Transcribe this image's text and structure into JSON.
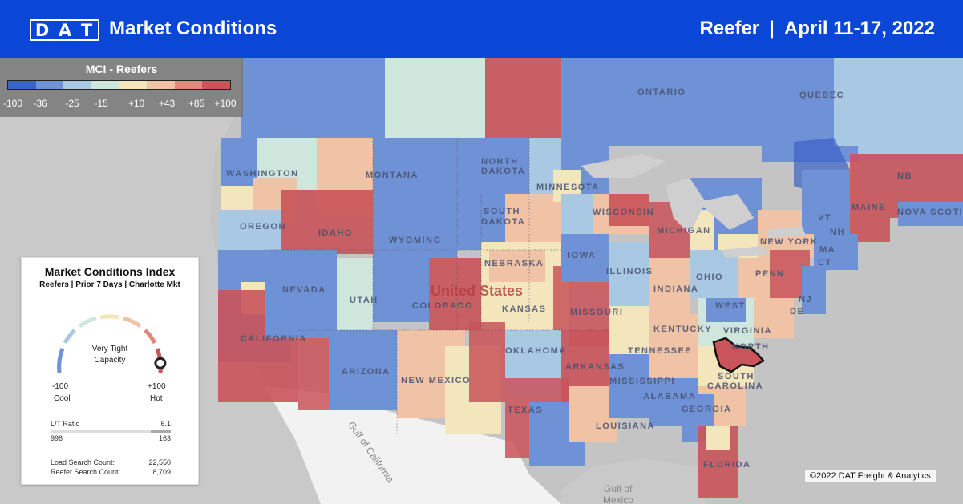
{
  "header": {
    "logo": [
      "D",
      "A",
      "T"
    ],
    "title": "Market Conditions",
    "equipment": "Reefer",
    "separator": "|",
    "date_range": "April 11-17, 2022"
  },
  "legend": {
    "title": "MCI - Reefers",
    "colors": [
      "#3b63c6",
      "#6f92d6",
      "#a9c8e4",
      "#cfe6dc",
      "#f3e6bc",
      "#f0c2a6",
      "#e0897a",
      "#c9545a"
    ],
    "ticks": [
      "-100",
      "-36",
      "-25",
      "-15",
      "+10",
      "+43",
      "+85",
      "+100"
    ]
  },
  "card": {
    "title": "Market Conditions Index",
    "subtitle": "Reefers | Prior 7 Days | Charlotte Mkt",
    "center_line1": "Very Tight",
    "center_line2": "Capacity",
    "min_value": "-100",
    "max_value": "+100",
    "min_label": "Cool",
    "max_label": "Hot",
    "gauge_level": 0.92,
    "lt_ratio_label": "L/T Ratio",
    "lt_ratio_value": "6.1",
    "loads_value": "996",
    "trucks_value": "163",
    "load_search_label": "Load Search Count:",
    "load_search_value": "22,550",
    "reefer_search_label": "Reefer Search Count:",
    "reefer_search_value": "8,709"
  },
  "map": {
    "country_label": "United States",
    "water_labels": {
      "gulf_california": "Gulf of California",
      "gulf_mexico_1": "Gulf of",
      "gulf_mexico_2": "Mexico"
    },
    "region_labels": {
      "ontario": "ONTARIO",
      "quebec": "QUEBEC",
      "washington": "WASHINGTON",
      "montana": "MONTANA",
      "north_dakota_1": "NORTH",
      "north_dakota_2": "DAKOTA",
      "minnesota": "MINNESOTA",
      "oregon": "OREGON",
      "idaho": "IDAHO",
      "wyoming": "WYOMING",
      "south_dakota_1": "SOUTH",
      "south_dakota_2": "DAKOTA",
      "wisconsin": "WISCONSIN",
      "michigan": "MICHIGAN",
      "new_york": "NEW YORK",
      "maine": "MAINE",
      "nb": "NB",
      "nova_scotia": "NOVA SCOTIA",
      "vt": "VT",
      "nh": "NH",
      "ma": "MA",
      "ct": "CT",
      "nevada": "NEVADA",
      "utah": "UTAH",
      "colorado": "COLORADO",
      "nebraska": "NEBRASKA",
      "iowa": "IOWA",
      "illinois": "ILLINOIS",
      "indiana": "INDIANA",
      "ohio": "OHIO",
      "penn": "PENN",
      "nj": "NJ",
      "de": "DE",
      "california": "CALIFORNIA",
      "kansas": "KANSAS",
      "missouri": "MISSOURI",
      "kentucky": "KENTUCKY",
      "west_virginia_1": "WEST",
      "virginia": "VIRGINIA",
      "arizona": "ARIZONA",
      "new_mexico": "NEW MEXICO",
      "oklahoma": "OKLAHOMA",
      "arkansas": "ARKANSAS",
      "tennessee": "TENNESSEE",
      "north_carolina": "NORTH",
      "south_carolina_1": "SOUTH",
      "south_carolina_2": "CAROLINA",
      "mississippi": "MISSISSIPPI",
      "alabama": "ALABAMA",
      "georgia": "GEORGIA",
      "texas": "TEXAS",
      "louisiana": "LOUISIANA",
      "florida": "FLORIDA"
    }
  },
  "copyright": "©2022 DAT Freight & Analytics"
}
